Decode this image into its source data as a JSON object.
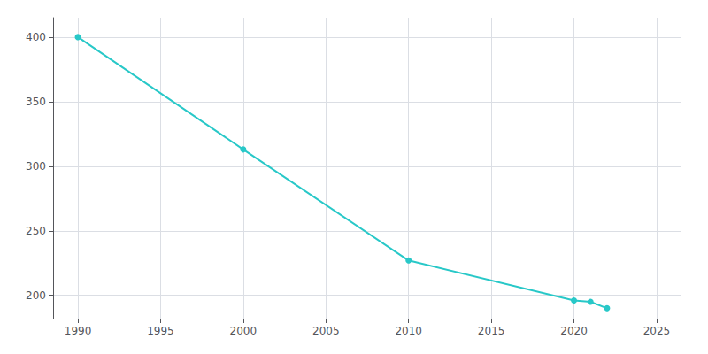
{
  "chart_data": {
    "type": "line",
    "x": [
      1990,
      2000,
      2010,
      2020,
      2021,
      2022
    ],
    "values": [
      400,
      313,
      227,
      196,
      195,
      190
    ],
    "color": "#28c8c8",
    "marker": "circle",
    "xlim": [
      1988.5,
      2026.5
    ],
    "ylim": [
      182,
      415
    ],
    "xticks": [
      1990,
      1995,
      2000,
      2005,
      2010,
      2015,
      2020,
      2025
    ],
    "yticks": [
      200,
      250,
      300,
      350,
      400
    ],
    "grid": true
  }
}
